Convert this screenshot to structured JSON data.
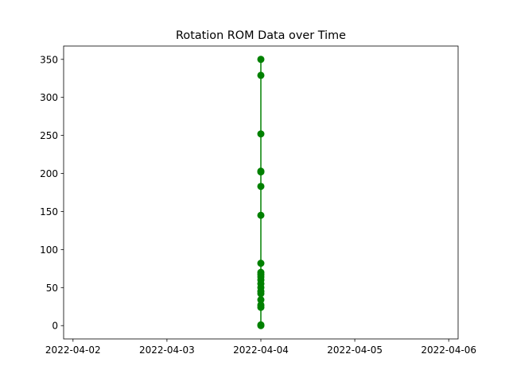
{
  "chart_data": {
    "type": "line",
    "title": "Rotation ROM Data over Time",
    "xlabel": "",
    "ylabel": "",
    "x_ticks": [
      "2022-04-02",
      "2022-04-03",
      "2022-04-04",
      "2022-04-05",
      "2022-04-06"
    ],
    "xlim": [
      "2022-04-01T21:36",
      "2022-04-06T02:24"
    ],
    "y_ticks": [
      0,
      50,
      100,
      150,
      200,
      250,
      300,
      350
    ],
    "ylim": [
      -17.5,
      367.5
    ],
    "grid": false,
    "series": [
      {
        "color": "#008000",
        "marker": "circle",
        "x": [
          "2022-04-04",
          "2022-04-04",
          "2022-04-04",
          "2022-04-04",
          "2022-04-04",
          "2022-04-04",
          "2022-04-04",
          "2022-04-04",
          "2022-04-04",
          "2022-04-04",
          "2022-04-04",
          "2022-04-04",
          "2022-04-04",
          "2022-04-04",
          "2022-04-04",
          "2022-04-04",
          "2022-04-04",
          "2022-04-04",
          "2022-04-04",
          "2022-04-04",
          "2022-04-04"
        ],
        "values": [
          0,
          1,
          24,
          27,
          34,
          42,
          45,
          50,
          55,
          60,
          64,
          67,
          70,
          82,
          145,
          183,
          202,
          203,
          252,
          329,
          350
        ]
      }
    ]
  }
}
